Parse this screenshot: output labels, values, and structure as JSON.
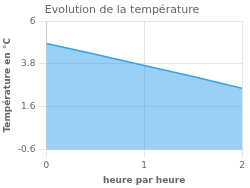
{
  "chart_data": {
    "type": "area",
    "title": "Evolution de la température",
    "xlabel": "heure par heure",
    "ylabel": "Température en °C",
    "x": [
      0,
      0.5,
      1.0,
      1.5,
      2.0
    ],
    "values": [
      4.85,
      4.3,
      3.72,
      3.15,
      2.55
    ],
    "xlim": [
      0,
      2.0
    ],
    "xticks": [
      0,
      1,
      2
    ],
    "ylim": [
      -0.6,
      6.0
    ],
    "yticks": [
      -0.6,
      1.6,
      3.8,
      6.0
    ],
    "grid": true
  }
}
